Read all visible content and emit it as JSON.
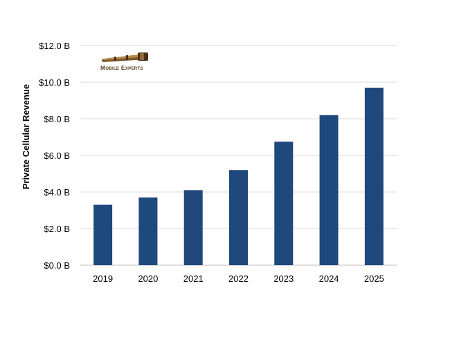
{
  "chart_data": {
    "type": "bar",
    "categories": [
      "2019",
      "2020",
      "2021",
      "2022",
      "2023",
      "2024",
      "2025"
    ],
    "values": [
      3.3,
      3.7,
      4.1,
      5.2,
      6.75,
      8.2,
      9.7
    ],
    "ylabel": "Private Cellular Revenue",
    "ylim": [
      0,
      12
    ],
    "yticks": [
      0,
      2,
      4,
      6,
      8,
      10,
      12
    ],
    "ytick_labels": [
      "$0.0  B",
      "$2.0  B",
      "$4.0  B",
      "$6.0  B",
      "$8.0  B",
      "$10.0  B",
      "$12.0  B"
    ],
    "grid": true,
    "bar_color": "#1f497d",
    "grid_color": "#d9d9d9"
  },
  "logo": {
    "text": "Mobile Experts",
    "icon": "telescope-icon"
  }
}
